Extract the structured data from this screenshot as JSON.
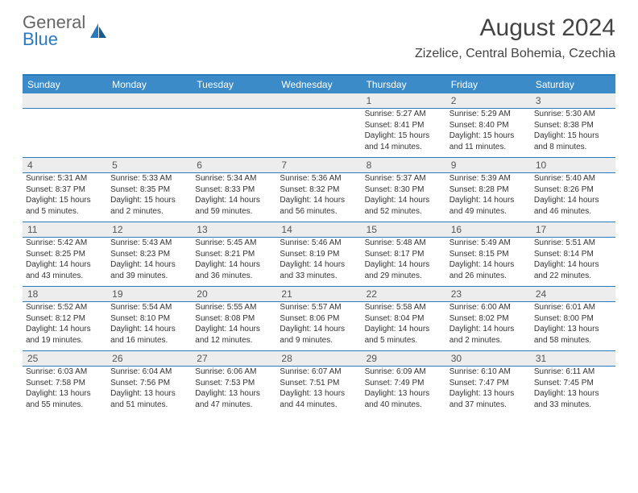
{
  "logo": {
    "line1": "General",
    "line2": "Blue"
  },
  "title": "August 2024",
  "location": "Zizelice, Central Bohemia, Czechia",
  "dayNames": [
    "Sunday",
    "Monday",
    "Tuesday",
    "Wednesday",
    "Thursday",
    "Friday",
    "Saturday"
  ],
  "colors": {
    "accent": "#3b8bc9",
    "border": "#2a7ac0",
    "daynumBg": "#ededed",
    "text": "#333333"
  },
  "weeks": [
    {
      "nums": [
        "",
        "",
        "",
        "",
        "1",
        "2",
        "3"
      ],
      "cells": [
        {
          "sunrise": "",
          "sunset": "",
          "daylight": ""
        },
        {
          "sunrise": "",
          "sunset": "",
          "daylight": ""
        },
        {
          "sunrise": "",
          "sunset": "",
          "daylight": ""
        },
        {
          "sunrise": "",
          "sunset": "",
          "daylight": ""
        },
        {
          "sunrise": "Sunrise: 5:27 AM",
          "sunset": "Sunset: 8:41 PM",
          "daylight": "Daylight: 15 hours and 14 minutes."
        },
        {
          "sunrise": "Sunrise: 5:29 AM",
          "sunset": "Sunset: 8:40 PM",
          "daylight": "Daylight: 15 hours and 11 minutes."
        },
        {
          "sunrise": "Sunrise: 5:30 AM",
          "sunset": "Sunset: 8:38 PM",
          "daylight": "Daylight: 15 hours and 8 minutes."
        }
      ]
    },
    {
      "nums": [
        "4",
        "5",
        "6",
        "7",
        "8",
        "9",
        "10"
      ],
      "cells": [
        {
          "sunrise": "Sunrise: 5:31 AM",
          "sunset": "Sunset: 8:37 PM",
          "daylight": "Daylight: 15 hours and 5 minutes."
        },
        {
          "sunrise": "Sunrise: 5:33 AM",
          "sunset": "Sunset: 8:35 PM",
          "daylight": "Daylight: 15 hours and 2 minutes."
        },
        {
          "sunrise": "Sunrise: 5:34 AM",
          "sunset": "Sunset: 8:33 PM",
          "daylight": "Daylight: 14 hours and 59 minutes."
        },
        {
          "sunrise": "Sunrise: 5:36 AM",
          "sunset": "Sunset: 8:32 PM",
          "daylight": "Daylight: 14 hours and 56 minutes."
        },
        {
          "sunrise": "Sunrise: 5:37 AM",
          "sunset": "Sunset: 8:30 PM",
          "daylight": "Daylight: 14 hours and 52 minutes."
        },
        {
          "sunrise": "Sunrise: 5:39 AM",
          "sunset": "Sunset: 8:28 PM",
          "daylight": "Daylight: 14 hours and 49 minutes."
        },
        {
          "sunrise": "Sunrise: 5:40 AM",
          "sunset": "Sunset: 8:26 PM",
          "daylight": "Daylight: 14 hours and 46 minutes."
        }
      ]
    },
    {
      "nums": [
        "11",
        "12",
        "13",
        "14",
        "15",
        "16",
        "17"
      ],
      "cells": [
        {
          "sunrise": "Sunrise: 5:42 AM",
          "sunset": "Sunset: 8:25 PM",
          "daylight": "Daylight: 14 hours and 43 minutes."
        },
        {
          "sunrise": "Sunrise: 5:43 AM",
          "sunset": "Sunset: 8:23 PM",
          "daylight": "Daylight: 14 hours and 39 minutes."
        },
        {
          "sunrise": "Sunrise: 5:45 AM",
          "sunset": "Sunset: 8:21 PM",
          "daylight": "Daylight: 14 hours and 36 minutes."
        },
        {
          "sunrise": "Sunrise: 5:46 AM",
          "sunset": "Sunset: 8:19 PM",
          "daylight": "Daylight: 14 hours and 33 minutes."
        },
        {
          "sunrise": "Sunrise: 5:48 AM",
          "sunset": "Sunset: 8:17 PM",
          "daylight": "Daylight: 14 hours and 29 minutes."
        },
        {
          "sunrise": "Sunrise: 5:49 AM",
          "sunset": "Sunset: 8:15 PM",
          "daylight": "Daylight: 14 hours and 26 minutes."
        },
        {
          "sunrise": "Sunrise: 5:51 AM",
          "sunset": "Sunset: 8:14 PM",
          "daylight": "Daylight: 14 hours and 22 minutes."
        }
      ]
    },
    {
      "nums": [
        "18",
        "19",
        "20",
        "21",
        "22",
        "23",
        "24"
      ],
      "cells": [
        {
          "sunrise": "Sunrise: 5:52 AM",
          "sunset": "Sunset: 8:12 PM",
          "daylight": "Daylight: 14 hours and 19 minutes."
        },
        {
          "sunrise": "Sunrise: 5:54 AM",
          "sunset": "Sunset: 8:10 PM",
          "daylight": "Daylight: 14 hours and 16 minutes."
        },
        {
          "sunrise": "Sunrise: 5:55 AM",
          "sunset": "Sunset: 8:08 PM",
          "daylight": "Daylight: 14 hours and 12 minutes."
        },
        {
          "sunrise": "Sunrise: 5:57 AM",
          "sunset": "Sunset: 8:06 PM",
          "daylight": "Daylight: 14 hours and 9 minutes."
        },
        {
          "sunrise": "Sunrise: 5:58 AM",
          "sunset": "Sunset: 8:04 PM",
          "daylight": "Daylight: 14 hours and 5 minutes."
        },
        {
          "sunrise": "Sunrise: 6:00 AM",
          "sunset": "Sunset: 8:02 PM",
          "daylight": "Daylight: 14 hours and 2 minutes."
        },
        {
          "sunrise": "Sunrise: 6:01 AM",
          "sunset": "Sunset: 8:00 PM",
          "daylight": "Daylight: 13 hours and 58 minutes."
        }
      ]
    },
    {
      "nums": [
        "25",
        "26",
        "27",
        "28",
        "29",
        "30",
        "31"
      ],
      "cells": [
        {
          "sunrise": "Sunrise: 6:03 AM",
          "sunset": "Sunset: 7:58 PM",
          "daylight": "Daylight: 13 hours and 55 minutes."
        },
        {
          "sunrise": "Sunrise: 6:04 AM",
          "sunset": "Sunset: 7:56 PM",
          "daylight": "Daylight: 13 hours and 51 minutes."
        },
        {
          "sunrise": "Sunrise: 6:06 AM",
          "sunset": "Sunset: 7:53 PM",
          "daylight": "Daylight: 13 hours and 47 minutes."
        },
        {
          "sunrise": "Sunrise: 6:07 AM",
          "sunset": "Sunset: 7:51 PM",
          "daylight": "Daylight: 13 hours and 44 minutes."
        },
        {
          "sunrise": "Sunrise: 6:09 AM",
          "sunset": "Sunset: 7:49 PM",
          "daylight": "Daylight: 13 hours and 40 minutes."
        },
        {
          "sunrise": "Sunrise: 6:10 AM",
          "sunset": "Sunset: 7:47 PM",
          "daylight": "Daylight: 13 hours and 37 minutes."
        },
        {
          "sunrise": "Sunrise: 6:11 AM",
          "sunset": "Sunset: 7:45 PM",
          "daylight": "Daylight: 13 hours and 33 minutes."
        }
      ]
    }
  ]
}
